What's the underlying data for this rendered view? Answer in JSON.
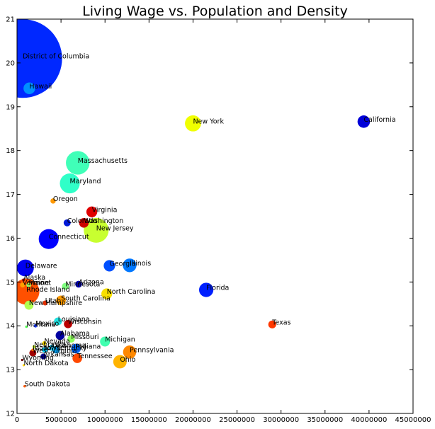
{
  "chart_data": {
    "type": "scatter",
    "title": "Living Wage vs. Population and Density",
    "xlabel": "",
    "ylabel": "",
    "xlim": [
      0,
      45000000
    ],
    "ylim": [
      12,
      21
    ],
    "x_ticks": [
      "0",
      "5000000",
      "10000000",
      "15000000",
      "20000000",
      "25000000",
      "30000000",
      "35000000",
      "40000000",
      "45000000"
    ],
    "y_ticks": [
      "12",
      "13",
      "14",
      "15",
      "16",
      "17",
      "18",
      "19",
      "20",
      "21"
    ],
    "grid": false,
    "legend": "none",
    "encoding": {
      "x": "population",
      "y": "living wage",
      "size": "density",
      "color": "jet colormap"
    },
    "points": [
      {
        "label": "District of Columbia",
        "x": 650000,
        "y": 20.1,
        "size": 10000,
        "color": "#0028ff"
      },
      {
        "label": "Hawaii",
        "x": 1400000,
        "y": 19.42,
        "size": 220,
        "color": "#0090ff"
      },
      {
        "label": "New York",
        "x": 20000000,
        "y": 18.62,
        "size": 420,
        "color": "#f0ff00"
      },
      {
        "label": "California",
        "x": 39400000,
        "y": 18.66,
        "size": 250,
        "color": "#0000d8"
      },
      {
        "label": "Massachusetts",
        "x": 6900000,
        "y": 17.72,
        "size": 900,
        "color": "#40ffb8"
      },
      {
        "label": "Maryland",
        "x": 6000000,
        "y": 17.25,
        "size": 640,
        "color": "#30ffc8"
      },
      {
        "label": "Oregon",
        "x": 4100000,
        "y": 16.85,
        "size": 45,
        "color": "#ff9800"
      },
      {
        "label": "Virginia",
        "x": 8500000,
        "y": 16.6,
        "size": 190,
        "color": "#e00000"
      },
      {
        "label": "Colorado",
        "x": 5700000,
        "y": 16.35,
        "size": 80,
        "color": "#0018d8"
      },
      {
        "label": "Washington",
        "x": 7600000,
        "y": 16.35,
        "size": 150,
        "color": "#cc0000"
      },
      {
        "label": "New Jersey",
        "x": 9000000,
        "y": 16.18,
        "size": 1000,
        "color": "#c8ff30"
      },
      {
        "label": "Connecticut",
        "x": 3600000,
        "y": 15.98,
        "size": 640,
        "color": "#0000ff"
      },
      {
        "label": "Georgia",
        "x": 10500000,
        "y": 15.37,
        "size": 210,
        "color": "#0050ff"
      },
      {
        "label": "Illinois",
        "x": 12800000,
        "y": 15.38,
        "size": 300,
        "color": "#0078ff"
      },
      {
        "label": "Delaware",
        "x": 950000,
        "y": 15.32,
        "size": 460,
        "color": "#0000f0"
      },
      {
        "label": "Alaska",
        "x": 740000,
        "y": 15.05,
        "size": 12,
        "color": "#800000"
      },
      {
        "label": "Vermont",
        "x": 630000,
        "y": 14.93,
        "size": 40,
        "color": "#ffa000"
      },
      {
        "label": "Maine",
        "x": 1330000,
        "y": 14.93,
        "size": 35,
        "color": "#a0ff60"
      },
      {
        "label": "Rhode Island",
        "x": 1060000,
        "y": 14.78,
        "size": 1100,
        "color": "#ff5000"
      },
      {
        "label": "Minnesota",
        "x": 5500000,
        "y": 14.9,
        "size": 80,
        "color": "#80ff80"
      },
      {
        "label": "Arizona",
        "x": 7000000,
        "y": 14.95,
        "size": 75,
        "color": "#0000b0"
      },
      {
        "label": "North Carolina",
        "x": 10200000,
        "y": 14.73,
        "size": 190,
        "color": "#f8e000"
      },
      {
        "label": "Florida",
        "x": 21500000,
        "y": 14.82,
        "size": 330,
        "color": "#0020ff"
      },
      {
        "label": "South Carolina",
        "x": 5000000,
        "y": 14.58,
        "size": 150,
        "color": "#ff9c00"
      },
      {
        "label": "Utah",
        "x": 3200000,
        "y": 14.52,
        "size": 40,
        "color": "#e03000"
      },
      {
        "label": "New Hampshire",
        "x": 1360000,
        "y": 14.47,
        "size": 130,
        "color": "#b0ff50"
      },
      {
        "label": "Louisiana",
        "x": 4650000,
        "y": 14.1,
        "size": 100,
        "color": "#20e0e0"
      },
      {
        "label": "Wisconsin",
        "x": 5800000,
        "y": 14.04,
        "size": 110,
        "color": "#bb0000"
      },
      {
        "label": "Mexico",
        "x": 2100000,
        "y": 14.0,
        "size": 20,
        "color": "#2040ff"
      },
      {
        "label": "Montana",
        "x": 1070000,
        "y": 13.98,
        "size": 10,
        "color": "#50ff50"
      },
      {
        "label": "Texas",
        "x": 29000000,
        "y": 14.03,
        "size": 100,
        "color": "#ff3800"
      },
      {
        "label": "Alabama",
        "x": 4900000,
        "y": 13.78,
        "size": 130,
        "color": "#0000a0"
      },
      {
        "label": "Missouri",
        "x": 6150000,
        "y": 13.7,
        "size": 90,
        "color": "#90ff60"
      },
      {
        "label": "Nevada",
        "x": 3100000,
        "y": 13.6,
        "size": 30,
        "color": "#ffe000"
      },
      {
        "label": "Michigan",
        "x": 10000000,
        "y": 13.64,
        "size": 160,
        "color": "#40ffb0"
      },
      {
        "label": "Nebraska",
        "x": 1940000,
        "y": 13.52,
        "size": 20,
        "color": "#d0ff30"
      },
      {
        "label": "Oklahoma",
        "x": 3950000,
        "y": 13.5,
        "size": 60,
        "color": "#20d0ff"
      },
      {
        "label": "Iowa",
        "x": 3150000,
        "y": 13.45,
        "size": 50,
        "color": "#00d0ff"
      },
      {
        "label": "Idaho",
        "x": 1790000,
        "y": 13.45,
        "size": 12,
        "color": "#ff7000"
      },
      {
        "label": "Indiana",
        "x": 6700000,
        "y": 13.48,
        "size": 150,
        "color": "#0068ff"
      },
      {
        "label": "Kentucky",
        "x": 4450000,
        "y": 13.45,
        "size": 90,
        "color": "#00a8ff"
      },
      {
        "label": "West Virginia",
        "x": 1800000,
        "y": 13.38,
        "size": 80,
        "color": "#a00000"
      },
      {
        "label": "Pennsylvania",
        "x": 12800000,
        "y": 13.4,
        "size": 280,
        "color": "#ff8800"
      },
      {
        "label": "Arkansas",
        "x": 3000000,
        "y": 13.3,
        "size": 55,
        "color": "#000090"
      },
      {
        "label": "Tennessee",
        "x": 6850000,
        "y": 13.26,
        "size": 150,
        "color": "#ff4800"
      },
      {
        "label": "Wyoming",
        "x": 590000,
        "y": 13.22,
        "size": 8,
        "color": "#6a0000"
      },
      {
        "label": "Ohio",
        "x": 11700000,
        "y": 13.18,
        "size": 290,
        "color": "#ffb400"
      },
      {
        "label": "North Dakota",
        "x": 760000,
        "y": 13.1,
        "size": 8,
        "color": "#ffd000"
      },
      {
        "label": "South Dakota",
        "x": 870000,
        "y": 12.62,
        "size": 10,
        "color": "#ff5800"
      }
    ]
  }
}
